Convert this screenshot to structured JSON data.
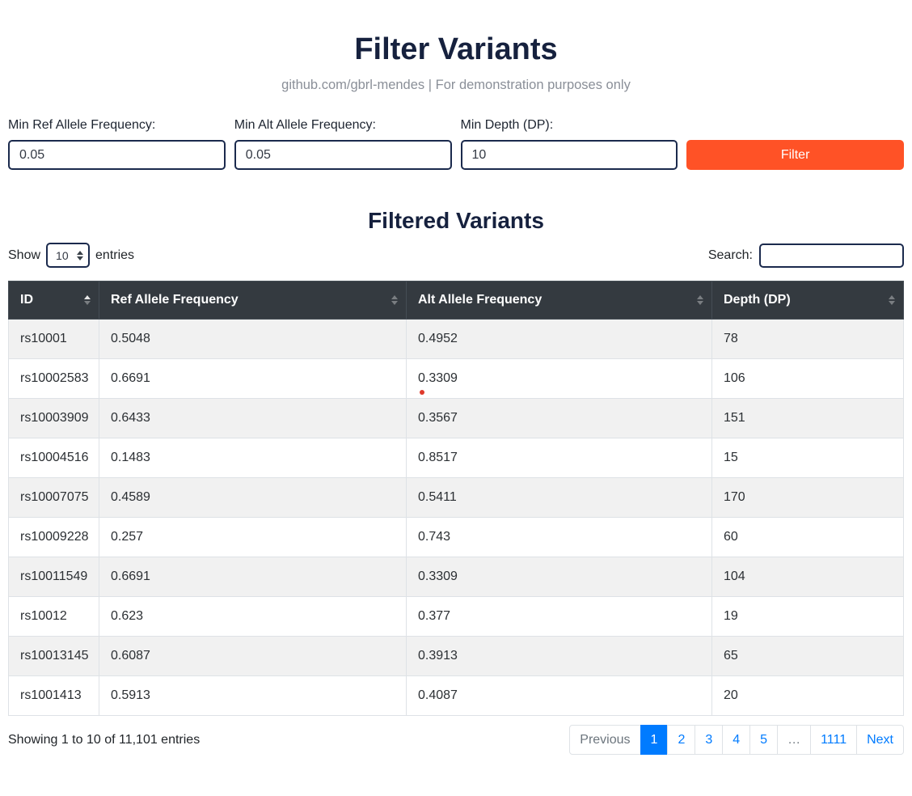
{
  "colors": {
    "navy": "#16213e",
    "input_border": "#1b2a4d",
    "orange_button": "#ff5226",
    "table_header_bg": "#343a40",
    "table_header_border": "#454d55",
    "row_stripe": "#f1f1f1",
    "cell_border": "#dee2e6",
    "link_blue": "#007bff",
    "muted_gray": "#6c757d",
    "subtitle_gray": "#8a8f98",
    "click_dot_red": "#df3a2c"
  },
  "header": {
    "title": "Filter Variants",
    "subtitle": "github.com/gbrl-mendes | For demonstration purposes only"
  },
  "filters": {
    "fields": [
      {
        "label": "Min Ref Allele Frequency:",
        "value": "0.05"
      },
      {
        "label": "Min Alt Allele Frequency:",
        "value": "0.05"
      },
      {
        "label": "Min Depth (DP):",
        "value": "10"
      }
    ],
    "button_label": "Filter"
  },
  "table_section": {
    "title": "Filtered Variants",
    "show_label": "Show",
    "entries_label": "entries",
    "page_length": "10",
    "search_label": "Search:",
    "search_value": "",
    "columns": [
      "ID",
      "Ref Allele Frequency",
      "Alt Allele Frequency",
      "Depth (DP)"
    ],
    "sorted_column": "ID",
    "sort_direction": "asc",
    "rows": [
      {
        "id": "rs10001",
        "ref": "0.5048",
        "alt": "0.4952",
        "depth": "78"
      },
      {
        "id": "rs10002583",
        "ref": "0.6691",
        "alt": "0.3309",
        "depth": "106"
      },
      {
        "id": "rs10003909",
        "ref": "0.6433",
        "alt": "0.3567",
        "depth": "151"
      },
      {
        "id": "rs10004516",
        "ref": "0.1483",
        "alt": "0.8517",
        "depth": "15"
      },
      {
        "id": "rs10007075",
        "ref": "0.4589",
        "alt": "0.5411",
        "depth": "170"
      },
      {
        "id": "rs10009228",
        "ref": "0.257",
        "alt": "0.743",
        "depth": "60"
      },
      {
        "id": "rs10011549",
        "ref": "0.6691",
        "alt": "0.3309",
        "depth": "104"
      },
      {
        "id": "rs10012",
        "ref": "0.623",
        "alt": "0.377",
        "depth": "19"
      },
      {
        "id": "rs10013145",
        "ref": "0.6087",
        "alt": "0.3913",
        "depth": "65"
      },
      {
        "id": "rs1001413",
        "ref": "0.5913",
        "alt": "0.4087",
        "depth": "20"
      }
    ],
    "info": "Showing 1 to 10 of 11,101 entries",
    "pagination": {
      "previous": "Previous",
      "pages": [
        "1",
        "2",
        "3",
        "4",
        "5"
      ],
      "active_page": "1",
      "ellipsis": "…",
      "last_page": "1111",
      "next": "Next"
    }
  }
}
